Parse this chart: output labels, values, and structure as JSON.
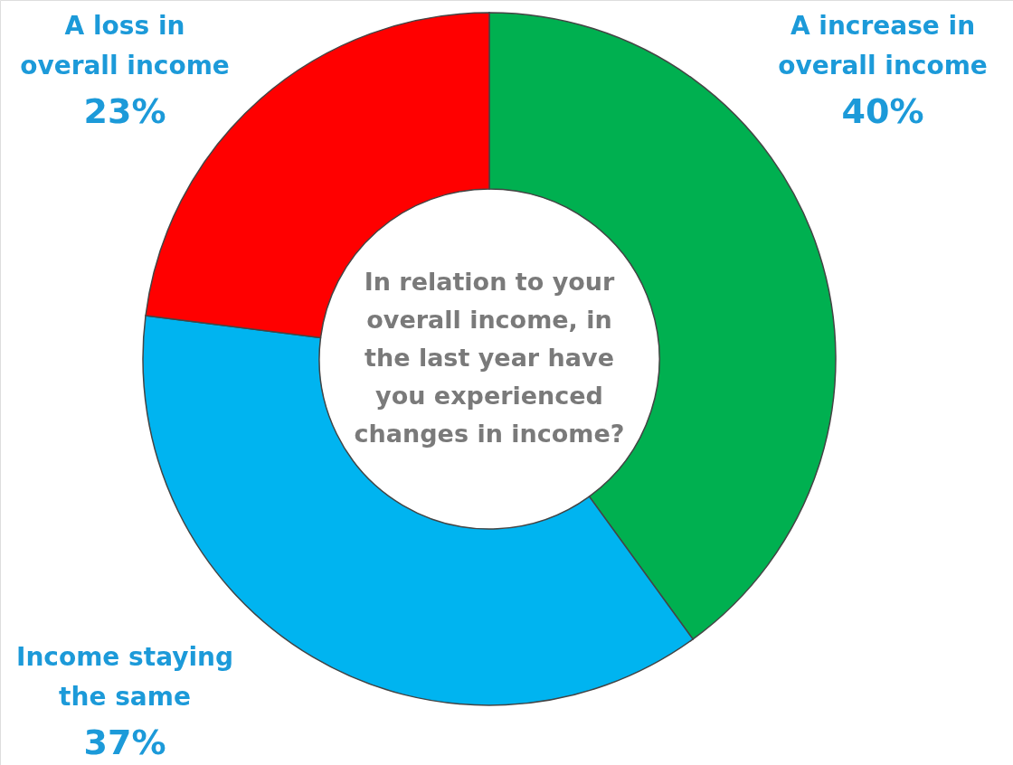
{
  "chart_data": {
    "type": "donut",
    "title": "In relation to your overall income, in the last year have you experienced changes in income?",
    "categories": [
      "A increase in overall income",
      "Income staying the same",
      "A loss in overall income"
    ],
    "values": [
      40,
      37,
      23
    ],
    "colors": [
      "#00b050",
      "#00b4f0",
      "#ff0000"
    ],
    "value_labels": [
      "40%",
      "37%",
      "23%"
    ]
  }
}
